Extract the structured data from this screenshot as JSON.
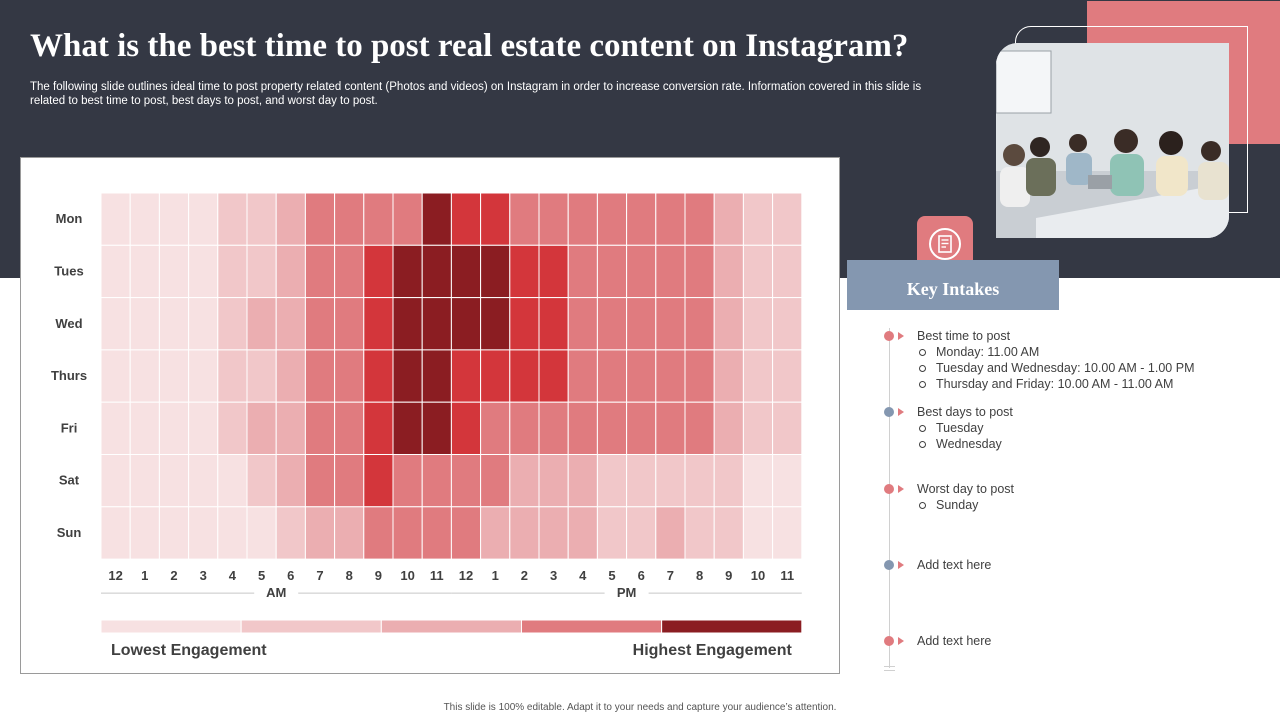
{
  "title": "What is the best time to post real estate content on Instagram?",
  "subtitle": "The following slide outlines ideal time to post property related content (Photos and videos) on Instagram in order to increase conversion rate. Information covered in this slide is related to best time to post, best days to post, and worst day to post.",
  "colors": {
    "header_bg": "#343844",
    "accent_pink": "#e07b7f",
    "key_intakes_bg": "#8497b0",
    "levels": [
      "#f7e1e2",
      "#f1c7c9",
      "#ebaeb1",
      "#e07b7f",
      "#d3363b",
      "#8b1d22"
    ]
  },
  "chart_data": {
    "type": "heatmap",
    "rows": [
      "Mon",
      "Tues",
      "Wed",
      "Thurs",
      "Fri",
      "Sat",
      "Sun"
    ],
    "columns": [
      "12",
      "1",
      "2",
      "3",
      "4",
      "5",
      "6",
      "7",
      "8",
      "9",
      "10",
      "11",
      "12",
      "1",
      "2",
      "3",
      "4",
      "5",
      "6",
      "7",
      "8",
      "9",
      "10",
      "11"
    ],
    "period_labels": [
      "AM",
      "PM"
    ],
    "levels": [
      [
        0,
        0,
        0,
        0,
        1,
        1,
        2,
        3,
        3,
        3,
        3,
        5,
        4,
        4,
        3,
        3,
        3,
        3,
        3,
        3,
        3,
        2,
        1,
        1
      ],
      [
        0,
        0,
        0,
        0,
        1,
        1,
        2,
        3,
        3,
        4,
        5,
        5,
        5,
        5,
        4,
        4,
        3,
        3,
        3,
        3,
        3,
        2,
        1,
        1
      ],
      [
        0,
        0,
        0,
        0,
        1,
        2,
        2,
        3,
        3,
        4,
        5,
        5,
        5,
        5,
        4,
        4,
        3,
        3,
        3,
        3,
        3,
        2,
        1,
        1
      ],
      [
        0,
        0,
        0,
        0,
        1,
        1,
        2,
        3,
        3,
        4,
        5,
        5,
        4,
        4,
        4,
        4,
        3,
        3,
        3,
        3,
        3,
        2,
        1,
        1
      ],
      [
        0,
        0,
        0,
        0,
        1,
        2,
        2,
        3,
        3,
        4,
        5,
        5,
        4,
        3,
        3,
        3,
        3,
        3,
        3,
        3,
        3,
        2,
        1,
        1
      ],
      [
        0,
        0,
        0,
        0,
        0,
        1,
        2,
        3,
        3,
        4,
        3,
        3,
        3,
        3,
        2,
        2,
        2,
        1,
        1,
        1,
        1,
        1,
        0,
        0
      ],
      [
        0,
        0,
        0,
        0,
        0,
        0,
        1,
        2,
        2,
        3,
        3,
        3,
        3,
        2,
        2,
        2,
        2,
        1,
        1,
        2,
        1,
        1,
        0,
        0
      ]
    ],
    "legend": {
      "low_label": "Lowest Engagement",
      "high_label": "Highest Engagement",
      "scale": [
        0,
        1,
        2,
        3,
        5
      ]
    }
  },
  "key_intakes": {
    "heading": "Key Intakes",
    "items": [
      {
        "title": "Best time to post",
        "dot_color": "#e07b7f",
        "subs": [
          "Monday: 11.00 AM",
          "Tuesday and Wednesday: 10.00 AM - 1.00 PM",
          "Thursday and Friday: 10.00 AM - 11.00 AM"
        ]
      },
      {
        "title": "Best days to post",
        "dot_color": "#8497b0",
        "subs": [
          "Tuesday",
          "Wednesday"
        ]
      },
      {
        "title": "Worst day to post",
        "dot_color": "#e07b7f",
        "subs": [
          "Sunday"
        ]
      },
      {
        "title": "Add text here",
        "dot_color": "#8497b0",
        "subs": []
      },
      {
        "title": "Add text here",
        "dot_color": "#e07b7f",
        "subs": []
      }
    ]
  },
  "footer": "This slide is 100% editable. Adapt it to your needs and capture your audience’s attention."
}
